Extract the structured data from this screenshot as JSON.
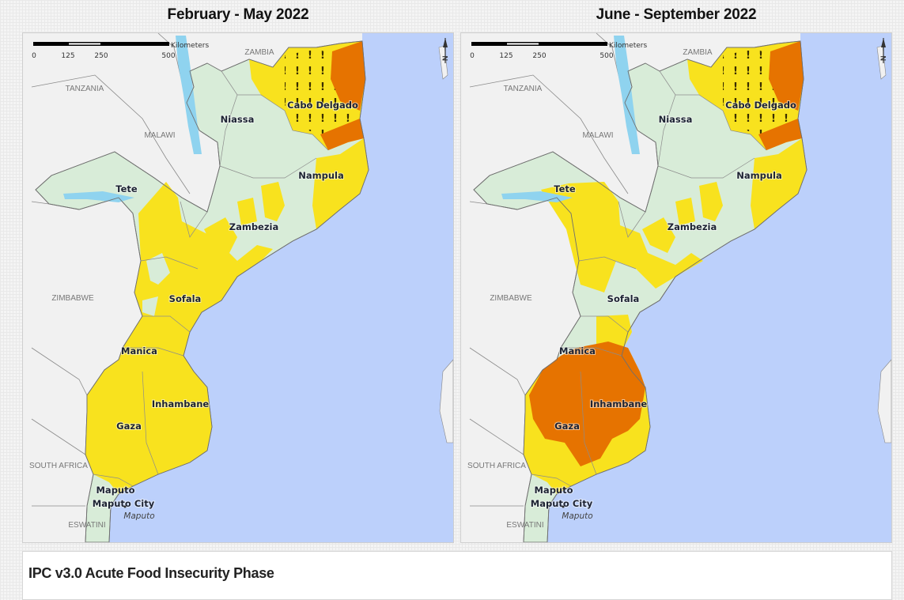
{
  "maps": [
    {
      "title": "February - May 2022",
      "scenario": "feb-may"
    },
    {
      "title": "June - September 2022",
      "scenario": "jun-sep"
    }
  ],
  "scale": {
    "ticks": [
      "0",
      "125",
      "250",
      "500"
    ],
    "unit": "Kilometers"
  },
  "north_arrow": "N",
  "countries": [
    "TANZANIA",
    "ZAMBIA",
    "MALAWI",
    "ZIMBABWE",
    "SOUTH AFRICA",
    "ESWATINI"
  ],
  "provinces": [
    "Niassa",
    "Cabo Delgado",
    "Nampula",
    "Tete",
    "Zambezia",
    "Sofala",
    "Manica",
    "Inhambane",
    "Gaza",
    "Maputo",
    "Maputo City"
  ],
  "city": "Maputo",
  "colors": {
    "land": "#f1f1f1",
    "ocean": "#bcd0fb",
    "lake": "#8fd3ef",
    "phase1_minimal": "#d8ecd8",
    "phase2_stressed": "#f8e21e",
    "phase3_crisis": "#e67300",
    "humanitarian_assistance_marker": "!"
  },
  "legend": {
    "title": "IPC v3.0 Acute Food Insecurity Phase"
  }
}
